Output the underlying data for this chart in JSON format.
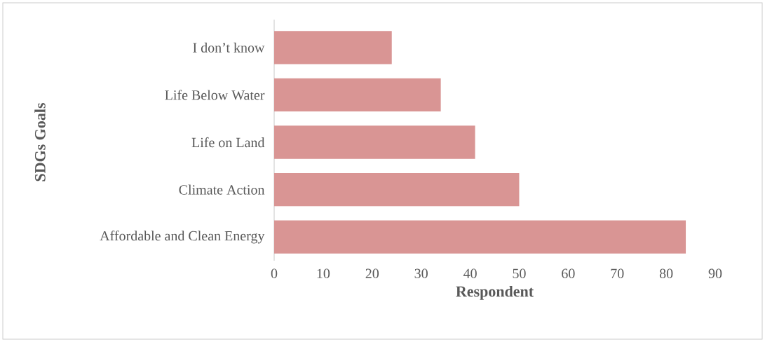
{
  "chart_data": {
    "type": "bar",
    "orientation": "horizontal",
    "categories": [
      "I don’t know",
      "Life Below Water",
      "Life on Land",
      "Climate Action",
      "Affordable and Clean Energy"
    ],
    "values": [
      24,
      34,
      41,
      50,
      84
    ],
    "color": "#d99594",
    "xlim": [
      0,
      90
    ],
    "xticks": [
      0,
      10,
      20,
      30,
      40,
      50,
      60,
      70,
      80,
      90
    ],
    "xlabel": "Respondent",
    "ylabel": "SDGs Goals"
  }
}
